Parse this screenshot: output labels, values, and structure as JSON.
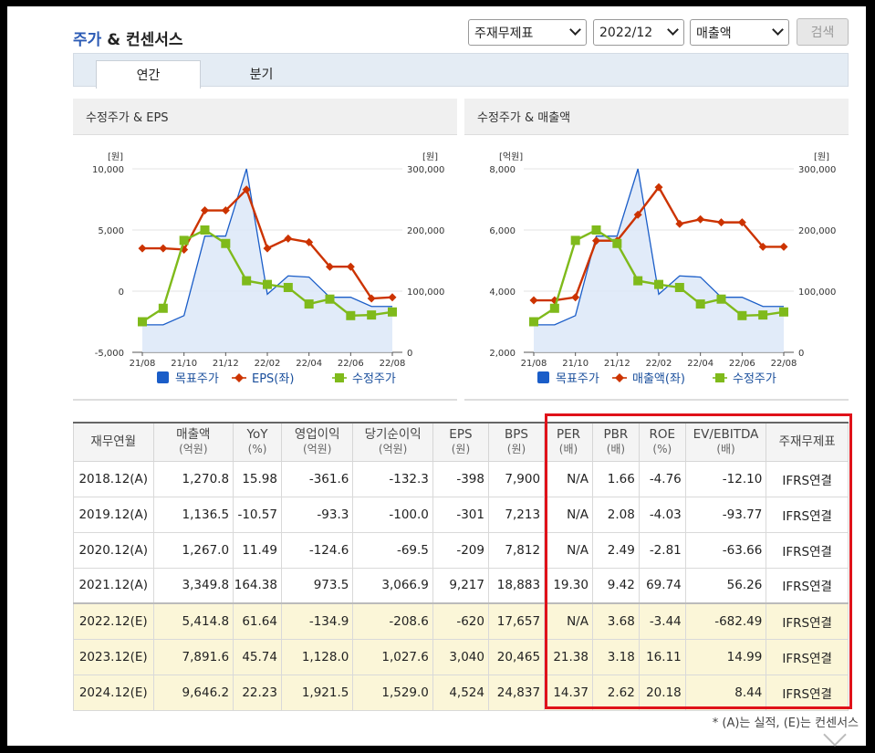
{
  "header": {
    "title_main": "주가",
    "title_rest": " & 컨센서스"
  },
  "controls": {
    "statement": "주재무제표",
    "period": "2022/12",
    "metric": "매출액",
    "search": "검색"
  },
  "tabs": [
    {
      "label": "연간",
      "active": true
    },
    {
      "label": "분기",
      "active": false
    }
  ],
  "colors": {
    "target": "#1a5dc8",
    "left_series": "#cc3300",
    "adj_price": "#7fba1b",
    "highlight_box": "#e0121a",
    "estimate_row": "#fbf6d8"
  },
  "chart_data": [
    {
      "type": "line",
      "title": "수정주가 & EPS",
      "left_unit": "[원]",
      "right_unit": "[원]",
      "left_ticks": [
        "10,000",
        "5,000",
        "0",
        "-5,000"
      ],
      "right_ticks": [
        "300,000",
        "200,000",
        "100,000",
        "0"
      ],
      "ylim_left": [
        -5000,
        10000
      ],
      "ylim_right": [
        0,
        300000
      ],
      "x_tick_labels": [
        "21/08",
        "21/10",
        "21/12",
        "22/02",
        "22/04",
        "22/06",
        "22/08"
      ],
      "series": [
        {
          "name": "목표주가",
          "axis": "right",
          "style": "area",
          "values": [
            45000,
            45000,
            60000,
            190000,
            190000,
            300000,
            95000,
            125000,
            123000,
            90000,
            90000,
            75000,
            75000
          ]
        },
        {
          "name": "EPS(좌)",
          "axis": "left",
          "style": "diamond",
          "values": [
            3500,
            3500,
            3400,
            6600,
            6600,
            8300,
            3500,
            4300,
            4000,
            2000,
            2000,
            -600,
            -500
          ]
        },
        {
          "name": "수정주가",
          "axis": "right",
          "style": "square",
          "values": [
            50000,
            72000,
            183000,
            200000,
            178000,
            117000,
            111000,
            106000,
            79000,
            87000,
            60000,
            61000,
            66000
          ]
        }
      ],
      "legend": [
        "목표주가",
        "EPS(좌)",
        "수정주가"
      ]
    },
    {
      "type": "line",
      "title": "수정주가 & 매출액",
      "left_unit": "[억원]",
      "right_unit": "[원]",
      "left_ticks": [
        "8,000",
        "6,000",
        "4,000",
        "2,000"
      ],
      "right_ticks": [
        "300,000",
        "200,000",
        "100,000",
        "0"
      ],
      "ylim_left": [
        2000,
        8000
      ],
      "ylim_right": [
        0,
        300000
      ],
      "x_tick_labels": [
        "21/08",
        "21/10",
        "21/12",
        "22/02",
        "22/04",
        "22/06",
        "22/08"
      ],
      "series": [
        {
          "name": "목표주가",
          "axis": "right",
          "style": "area",
          "values": [
            45000,
            45000,
            60000,
            190000,
            190000,
            300000,
            95000,
            125000,
            123000,
            90000,
            90000,
            75000,
            75000
          ]
        },
        {
          "name": "매출액(좌)",
          "axis": "left",
          "style": "diamond",
          "values": [
            3700,
            3700,
            3800,
            5650,
            5650,
            6500,
            7400,
            6200,
            6350,
            6250,
            6250,
            5450,
            5450
          ]
        },
        {
          "name": "수정주가",
          "axis": "right",
          "style": "square",
          "values": [
            50000,
            72000,
            183000,
            200000,
            178000,
            117000,
            111000,
            106000,
            79000,
            87000,
            60000,
            61000,
            66000
          ]
        }
      ],
      "legend": [
        "목표주가",
        "매출액(좌)",
        "수정주가"
      ]
    }
  ],
  "table": {
    "headers": [
      {
        "label": "재무연월",
        "unit": ""
      },
      {
        "label": "매출액",
        "unit": "(억원)"
      },
      {
        "label": "YoY",
        "unit": "(%)"
      },
      {
        "label": "영업이익",
        "unit": "(억원)"
      },
      {
        "label": "당기순이익",
        "unit": "(억원)"
      },
      {
        "label": "EPS",
        "unit": "(원)"
      },
      {
        "label": "BPS",
        "unit": "(원)"
      },
      {
        "label": "PER",
        "unit": "(배)"
      },
      {
        "label": "PBR",
        "unit": "(배)"
      },
      {
        "label": "ROE",
        "unit": "(%)"
      },
      {
        "label": "EV/EBITDA",
        "unit": "(배)"
      },
      {
        "label": "주재무제표",
        "unit": ""
      }
    ],
    "rows": [
      {
        "estimate": false,
        "cells": [
          "2018.12(A)",
          "1,270.8",
          "15.98",
          "-361.6",
          "-132.3",
          "-398",
          "7,900",
          "N/A",
          "1.66",
          "-4.76",
          "-12.10",
          "IFRS연결"
        ]
      },
      {
        "estimate": false,
        "cells": [
          "2019.12(A)",
          "1,136.5",
          "-10.57",
          "-93.3",
          "-100.0",
          "-301",
          "7,213",
          "N/A",
          "2.08",
          "-4.03",
          "-93.77",
          "IFRS연결"
        ]
      },
      {
        "estimate": false,
        "cells": [
          "2020.12(A)",
          "1,267.0",
          "11.49",
          "-124.6",
          "-69.5",
          "-209",
          "7,812",
          "N/A",
          "2.49",
          "-2.81",
          "-63.66",
          "IFRS연결"
        ]
      },
      {
        "estimate": false,
        "cells": [
          "2021.12(A)",
          "3,349.8",
          "164.38",
          "973.5",
          "3,066.9",
          "9,217",
          "18,883",
          "19.30",
          "9.42",
          "69.74",
          "56.26",
          "IFRS연결"
        ]
      },
      {
        "estimate": true,
        "cells": [
          "2022.12(E)",
          "5,414.8",
          "61.64",
          "-134.9",
          "-208.6",
          "-620",
          "17,657",
          "N/A",
          "3.68",
          "-3.44",
          "-682.49",
          "IFRS연결"
        ]
      },
      {
        "estimate": true,
        "cells": [
          "2023.12(E)",
          "7,891.6",
          "45.74",
          "1,128.0",
          "1,027.6",
          "3,040",
          "20,465",
          "21.38",
          "3.18",
          "16.11",
          "14.99",
          "IFRS연결"
        ]
      },
      {
        "estimate": true,
        "cells": [
          "2024.12(E)",
          "9,646.2",
          "22.23",
          "1,921.5",
          "1,529.0",
          "4,524",
          "24,837",
          "14.37",
          "2.62",
          "20.18",
          "8.44",
          "IFRS연결"
        ]
      }
    ]
  },
  "footnote": "* (A)는 실적, (E)는 컨센서스"
}
